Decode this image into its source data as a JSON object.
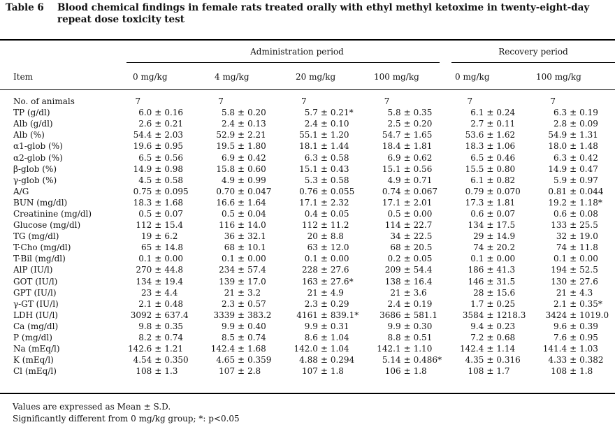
{
  "caption": {
    "label": "Table 6",
    "text": "Blood chemical findings in female rats treated orally with ethyl methyl ketoxime in twenty-eight-day repeat dose toxicity test"
  },
  "groups": {
    "administration": "Administration period",
    "recovery": "Recovery period"
  },
  "headers": {
    "item": "Item",
    "doses": [
      "0 mg/kg",
      "4 mg/kg",
      "20 mg/kg",
      "100 mg/kg",
      "0 mg/kg",
      "100 mg/kg"
    ]
  },
  "animals": {
    "label": "No. of animals",
    "values": [
      "7",
      "7",
      "7",
      "7",
      "7",
      "7"
    ]
  },
  "rows": [
    {
      "item": "TP (g/dl)",
      "cells": [
        [
          "6.0",
          "0.16"
        ],
        [
          "5.8",
          "0.20"
        ],
        [
          "5.7",
          "0.21*"
        ],
        [
          "5.8",
          "0.35"
        ],
        [
          "6.1",
          "0.24"
        ],
        [
          "6.3",
          "0.19"
        ]
      ]
    },
    {
      "item": "Alb (g/dl)",
      "cells": [
        [
          "2.6",
          "0.21"
        ],
        [
          "2.4",
          "0.13"
        ],
        [
          "2.4",
          "0.10"
        ],
        [
          "2.5",
          "0.20"
        ],
        [
          "2.7",
          "0.11"
        ],
        [
          "2.8",
          "0.09"
        ]
      ]
    },
    {
      "item": "Alb (%)",
      "cells": [
        [
          "54.4",
          "2.03"
        ],
        [
          "52.9",
          "2.21"
        ],
        [
          "55.1",
          "1.20"
        ],
        [
          "54.7",
          "1.65"
        ],
        [
          "53.6",
          "1.62"
        ],
        [
          "54.9",
          "1.31"
        ]
      ]
    },
    {
      "item": "α1-glob (%)",
      "cells": [
        [
          "19.6",
          "0.95"
        ],
        [
          "19.5",
          "1.80"
        ],
        [
          "18.1",
          "1.44"
        ],
        [
          "18.4",
          "1.81"
        ],
        [
          "18.3",
          "1.06"
        ],
        [
          "18.0",
          "1.48"
        ]
      ]
    },
    {
      "item": "α2-glob (%)",
      "cells": [
        [
          "6.5",
          "0.56"
        ],
        [
          "6.9",
          "0.42"
        ],
        [
          "6.3",
          "0.58"
        ],
        [
          "6.9",
          "0.62"
        ],
        [
          "6.5",
          "0.46"
        ],
        [
          "6.3",
          "0.42"
        ]
      ]
    },
    {
      "item": "β-glob (%)",
      "cells": [
        [
          "14.9",
          "0.98"
        ],
        [
          "15.8",
          "0.60"
        ],
        [
          "15.1",
          "0.43"
        ],
        [
          "15.1",
          "0.56"
        ],
        [
          "15.5",
          "0.80"
        ],
        [
          "14.9",
          "0.47"
        ]
      ]
    },
    {
      "item": "γ-glob (%)",
      "cells": [
        [
          "4.5",
          "0.58"
        ],
        [
          "4.9",
          "0.99"
        ],
        [
          "5.3",
          "0.58"
        ],
        [
          "4.9",
          "0.71"
        ],
        [
          "6.1",
          "0.82"
        ],
        [
          "5.9",
          "0.97"
        ]
      ]
    },
    {
      "item": "A/G",
      "cells": [
        [
          "0.75",
          "0.095"
        ],
        [
          "0.70",
          "0.047"
        ],
        [
          "0.76",
          "0.055"
        ],
        [
          "0.74",
          "0.067"
        ],
        [
          "0.79",
          "0.070"
        ],
        [
          "0.81",
          "0.044"
        ]
      ]
    },
    {
      "item": "BUN (mg/dl)",
      "cells": [
        [
          "18.3",
          "1.68"
        ],
        [
          "16.6",
          "1.64"
        ],
        [
          "17.1",
          "2.32"
        ],
        [
          "17.1",
          "2.01"
        ],
        [
          "17.3",
          "1.81"
        ],
        [
          "19.2",
          "1.18*"
        ]
      ]
    },
    {
      "item": "Creatinine (mg/dl)",
      "cells": [
        [
          "0.5",
          "0.07"
        ],
        [
          "0.5",
          "0.04"
        ],
        [
          "0.4",
          "0.05"
        ],
        [
          "0.5",
          "0.00"
        ],
        [
          "0.6",
          "0.07"
        ],
        [
          "0.6",
          "0.08"
        ]
      ]
    },
    {
      "item": "Glucose (mg/dl)",
      "cells": [
        [
          "112",
          "15.4"
        ],
        [
          "116",
          "14.0"
        ],
        [
          "112",
          "11.2"
        ],
        [
          "114",
          "22.7"
        ],
        [
          "134",
          "17.5"
        ],
        [
          "133",
          "25.5"
        ]
      ]
    },
    {
      "item": "TG (mg/dl)",
      "cells": [
        [
          "19",
          "6.2"
        ],
        [
          "36",
          "32.1"
        ],
        [
          "20",
          "8.8"
        ],
        [
          "34",
          "22.5"
        ],
        [
          "29",
          "14.9"
        ],
        [
          "32",
          "19.0"
        ]
      ]
    },
    {
      "item": "T-Cho (mg/dl)",
      "cells": [
        [
          "65",
          "14.8"
        ],
        [
          "68",
          "10.1"
        ],
        [
          "63",
          "12.0"
        ],
        [
          "68",
          "20.5"
        ],
        [
          "74",
          "20.2"
        ],
        [
          "74",
          "11.8"
        ]
      ]
    },
    {
      "item": "T-Bil (mg/dl)",
      "cells": [
        [
          "0.1",
          "0.00"
        ],
        [
          "0.1",
          "0.00"
        ],
        [
          "0.1",
          "0.00"
        ],
        [
          "0.2",
          "0.05"
        ],
        [
          "0.1",
          "0.00"
        ],
        [
          "0.1",
          "0.00"
        ]
      ]
    },
    {
      "item": "AlP (IU/l)",
      "cells": [
        [
          "270",
          "44.8"
        ],
        [
          "234",
          "57.4"
        ],
        [
          "228",
          "27.6"
        ],
        [
          "209",
          "54.4"
        ],
        [
          "186",
          "41.3"
        ],
        [
          "194",
          "52.5"
        ]
      ]
    },
    {
      "item": "GOT (IU/l)",
      "cells": [
        [
          "134",
          "19.4"
        ],
        [
          "139",
          "17.0"
        ],
        [
          "163",
          "27.6*"
        ],
        [
          "138",
          "16.4"
        ],
        [
          "146",
          "31.5"
        ],
        [
          "130",
          "27.6"
        ]
      ]
    },
    {
      "item": "GPT (IU/l)",
      "cells": [
        [
          "23",
          "4.4"
        ],
        [
          "21",
          "3.2"
        ],
        [
          "21",
          "4.9"
        ],
        [
          "21",
          "3.6"
        ],
        [
          "28",
          "15.6"
        ],
        [
          "21",
          "4.3"
        ]
      ]
    },
    {
      "item": "γ-GT (IU/l)",
      "cells": [
        [
          "2.1",
          "0.48"
        ],
        [
          "2.3",
          "0.57"
        ],
        [
          "2.3",
          "0.29"
        ],
        [
          "2.4",
          "0.19"
        ],
        [
          "1.7",
          "0.25"
        ],
        [
          "2.1",
          "0.35*"
        ]
      ]
    },
    {
      "item": "LDH (IU/l)",
      "cells": [
        [
          "3092",
          "637.4"
        ],
        [
          "3339",
          "383.2"
        ],
        [
          "4161",
          "839.1*"
        ],
        [
          "3686",
          "581.1"
        ],
        [
          "3584",
          "1218.3"
        ],
        [
          "3424",
          "1019.0"
        ]
      ]
    },
    {
      "item": "Ca (mg/dl)",
      "cells": [
        [
          "9.8",
          "0.35"
        ],
        [
          "9.9",
          "0.40"
        ],
        [
          "9.9",
          "0.31"
        ],
        [
          "9.9",
          "0.30"
        ],
        [
          "9.4",
          "0.23"
        ],
        [
          "9.6",
          "0.39"
        ]
      ]
    },
    {
      "item": "P (mg/dl)",
      "cells": [
        [
          "8.2",
          "0.74"
        ],
        [
          "8.5",
          "0.74"
        ],
        [
          "8.6",
          "1.04"
        ],
        [
          "8.8",
          "0.51"
        ],
        [
          "7.2",
          "0.68"
        ],
        [
          "7.6",
          "0.95"
        ]
      ]
    },
    {
      "item": "Na (mEq/l)",
      "cells": [
        [
          "142.6",
          "1.21"
        ],
        [
          "142.4",
          "1.68"
        ],
        [
          "142.0",
          "1.04"
        ],
        [
          "142.1",
          "1.10"
        ],
        [
          "142.4",
          "1.14"
        ],
        [
          "141.4",
          "1.03"
        ]
      ]
    },
    {
      "item": "K (mEq/l)",
      "cells": [
        [
          "4.54",
          "0.350"
        ],
        [
          "4.65",
          "0.359"
        ],
        [
          "4.88",
          "0.294"
        ],
        [
          "5.14",
          "0.486*"
        ],
        [
          "4.35",
          "0.316"
        ],
        [
          "4.33",
          "0.382"
        ]
      ]
    },
    {
      "item": "Cl (mEq/l)",
      "cells": [
        [
          "108",
          "1.3"
        ],
        [
          "107",
          "2.8"
        ],
        [
          "107",
          "1.8"
        ],
        [
          "106",
          "1.8"
        ],
        [
          "108",
          "1.7"
        ],
        [
          "108",
          "1.8"
        ]
      ]
    }
  ],
  "pm_symbol": "±",
  "footnotes": [
    "Values are expressed as Mean ± S.D.",
    "Significantly different from 0 mg/kg group;  *: p<0.05"
  ]
}
